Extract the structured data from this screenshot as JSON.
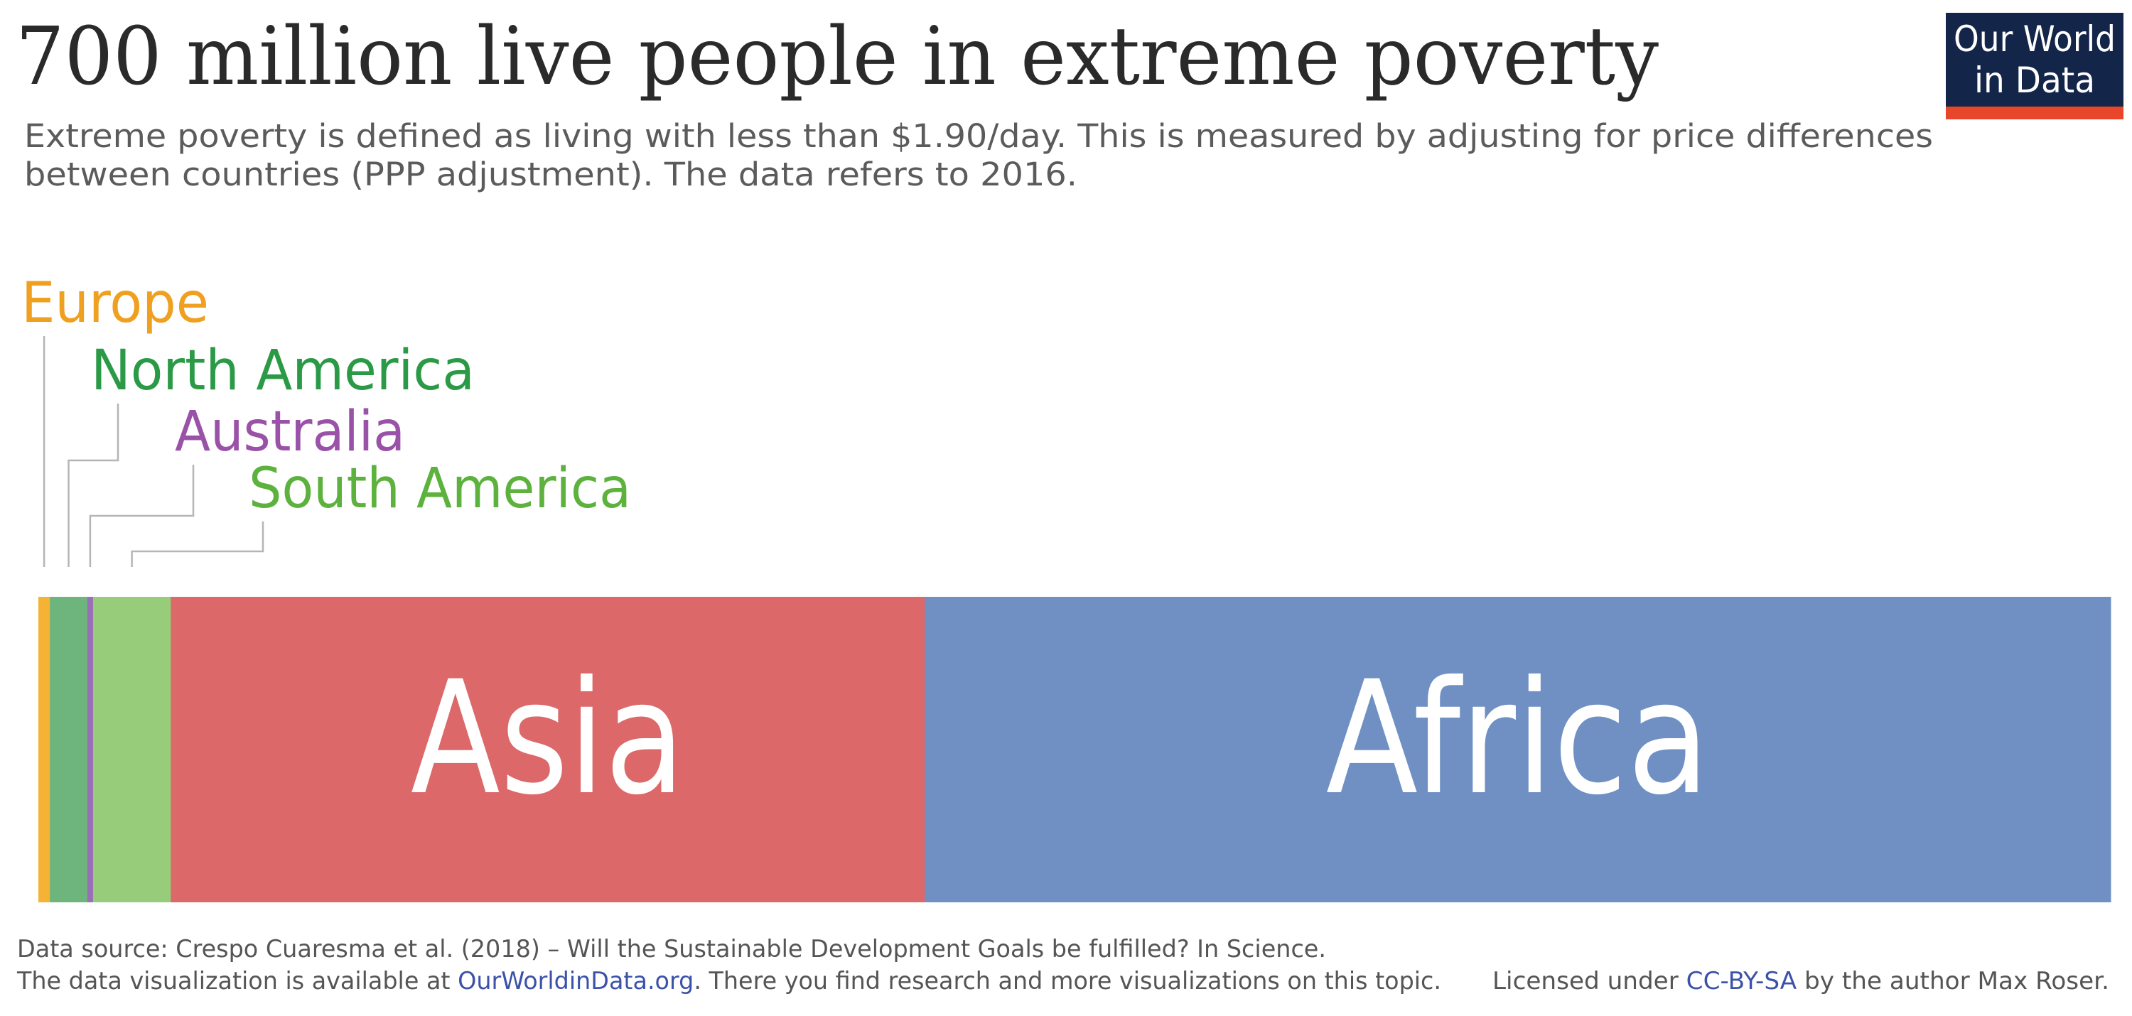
{
  "title": "700 million live people in extreme poverty",
  "subtitle_lines": [
    "Extreme poverty is defined as living with less than $1.90/day. This is measured by adjusting for price differences",
    "between countries (PPP adjustment). The data refers to 2016."
  ],
  "logo": {
    "line1": "Our World",
    "line2": "in Data",
    "bg_color": "#14254a",
    "accent_color": "#e8462a"
  },
  "chart_data": {
    "type": "bar",
    "orientation": "horizontal-stacked",
    "total_label": "700 million",
    "categories": [
      "Europe",
      "North America",
      "Australia",
      "South America",
      "Asia",
      "Africa"
    ],
    "values": [
      4,
      13,
      2,
      27,
      262,
      412
    ],
    "unit": "million people",
    "colors": [
      "#f5b335",
      "#6db57d",
      "#9b6fb8",
      "#97cc7b",
      "#dc6869",
      "#7090c4"
    ],
    "label_colors": [
      "#f0a020",
      "#2a9a46",
      "#9a52a8",
      "#5db23e",
      "#ffffff",
      "#ffffff"
    ],
    "year": "2016"
  },
  "footer": {
    "source": "Data source: Crespo Cuaresma et al. (2018) – Will the Sustainable Development Goals be fulfilled? In Science.",
    "availability_prefix": "The data visualization is available at ",
    "availability_link": "OurWorldinData.org",
    "availability_suffix": ". There you find research and more visualizations on this topic.",
    "license_prefix": "Licensed under ",
    "license_link": "CC-BY-SA",
    "license_suffix": " by the author Max Roser."
  }
}
